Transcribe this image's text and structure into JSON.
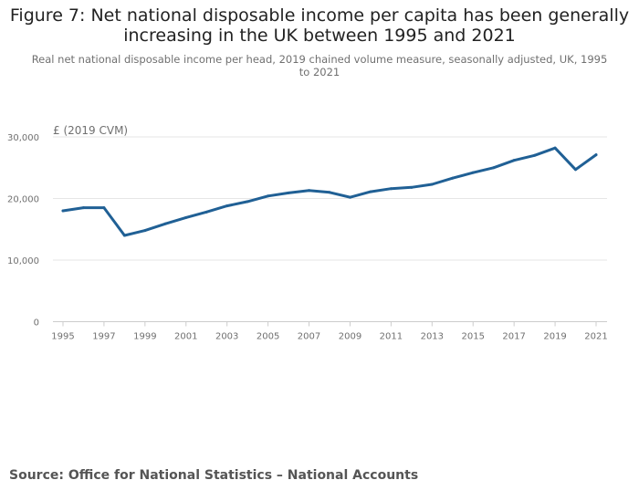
{
  "title": "Figure 7: Net national disposable income per capita has been generally increasing in the UK between 1995 and 2021",
  "subtitle": "Real net national disposable income per head, 2019 chained volume measure, seasonally adjusted, UK, 1995 to 2021",
  "source": "Source: Office for National Statistics – National Accounts",
  "colors": {
    "line": "#206095",
    "grid": "#e6e6e6",
    "axis_text": "#707070"
  },
  "chart_data": {
    "type": "line",
    "title": "Figure 7: Net national disposable income per capita has been generally increasing in the UK between 1995 and 2021",
    "ylabel": "£ (2019 CVM)",
    "xlabel": "",
    "x": [
      1995,
      1996,
      1997,
      1998,
      1999,
      2000,
      2001,
      2002,
      2003,
      2004,
      2005,
      2006,
      2007,
      2008,
      2009,
      2010,
      2011,
      2012,
      2013,
      2014,
      2015,
      2016,
      2017,
      2018,
      2019,
      2020,
      2021
    ],
    "series": [
      {
        "name": "",
        "values": [
          18000,
          18500,
          18500,
          14000,
          14800,
          15900,
          16900,
          17800,
          18800,
          19500,
          20400,
          20900,
          21300,
          21000,
          20200,
          21100,
          21600,
          21800,
          22300,
          23300,
          24200,
          25000,
          26200,
          27000,
          28200,
          24700,
          27100
        ]
      }
    ],
    "x_ticks": [
      "1995",
      "1997",
      "1999",
      "2001",
      "2003",
      "2005",
      "2007",
      "2009",
      "2011",
      "2013",
      "2015",
      "2017",
      "2019",
      "2021"
    ],
    "y_ticks": [
      "0",
      "10,000",
      "20,000",
      "30,000"
    ],
    "y_tick_values": [
      0,
      10000,
      20000,
      30000
    ],
    "ylim": [
      0,
      30000
    ],
    "xlim": [
      1995,
      2021
    ],
    "grid": true,
    "legend": "none"
  }
}
